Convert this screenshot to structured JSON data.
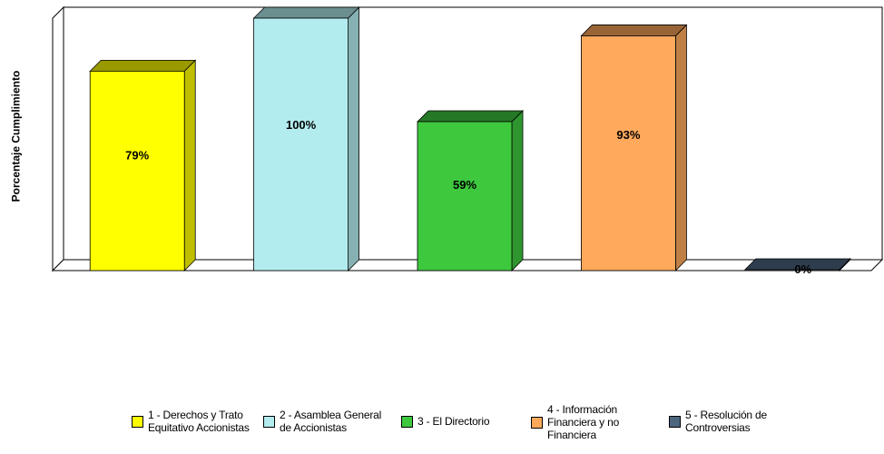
{
  "chart_data": {
    "type": "bar",
    "ylabel": "Porcentaje Cumplimiento",
    "xlabel": "",
    "ylim": [
      0,
      100
    ],
    "categories": [
      "1 - Derechos y Trato Equitativo Accionistas",
      "2 - Asamblea General de Accionistas",
      "3 - El Directorio",
      "4 - Información Financiera y no Financiera",
      "5 - Resolución de Controversias"
    ],
    "values": [
      79,
      100,
      59,
      93,
      0
    ],
    "data_labels": [
      "79%",
      "100%",
      "59%",
      "93%",
      "0%"
    ],
    "colors": [
      "#ffff00",
      "#b3ecef",
      "#3ec83e",
      "#ffa95c",
      "#4d6680"
    ],
    "legend": {
      "position": "bottom",
      "entries": [
        "1 - Derechos y Trato\nEquitativo Accionistas",
        "2 - Asamblea General\nde Accionistas",
        "3 - El Directorio",
        "4 - Información\nFinanciera y no\nFinanciera",
        "5 - Resolución de\nControversias"
      ]
    },
    "grid": false,
    "style": "3d"
  }
}
